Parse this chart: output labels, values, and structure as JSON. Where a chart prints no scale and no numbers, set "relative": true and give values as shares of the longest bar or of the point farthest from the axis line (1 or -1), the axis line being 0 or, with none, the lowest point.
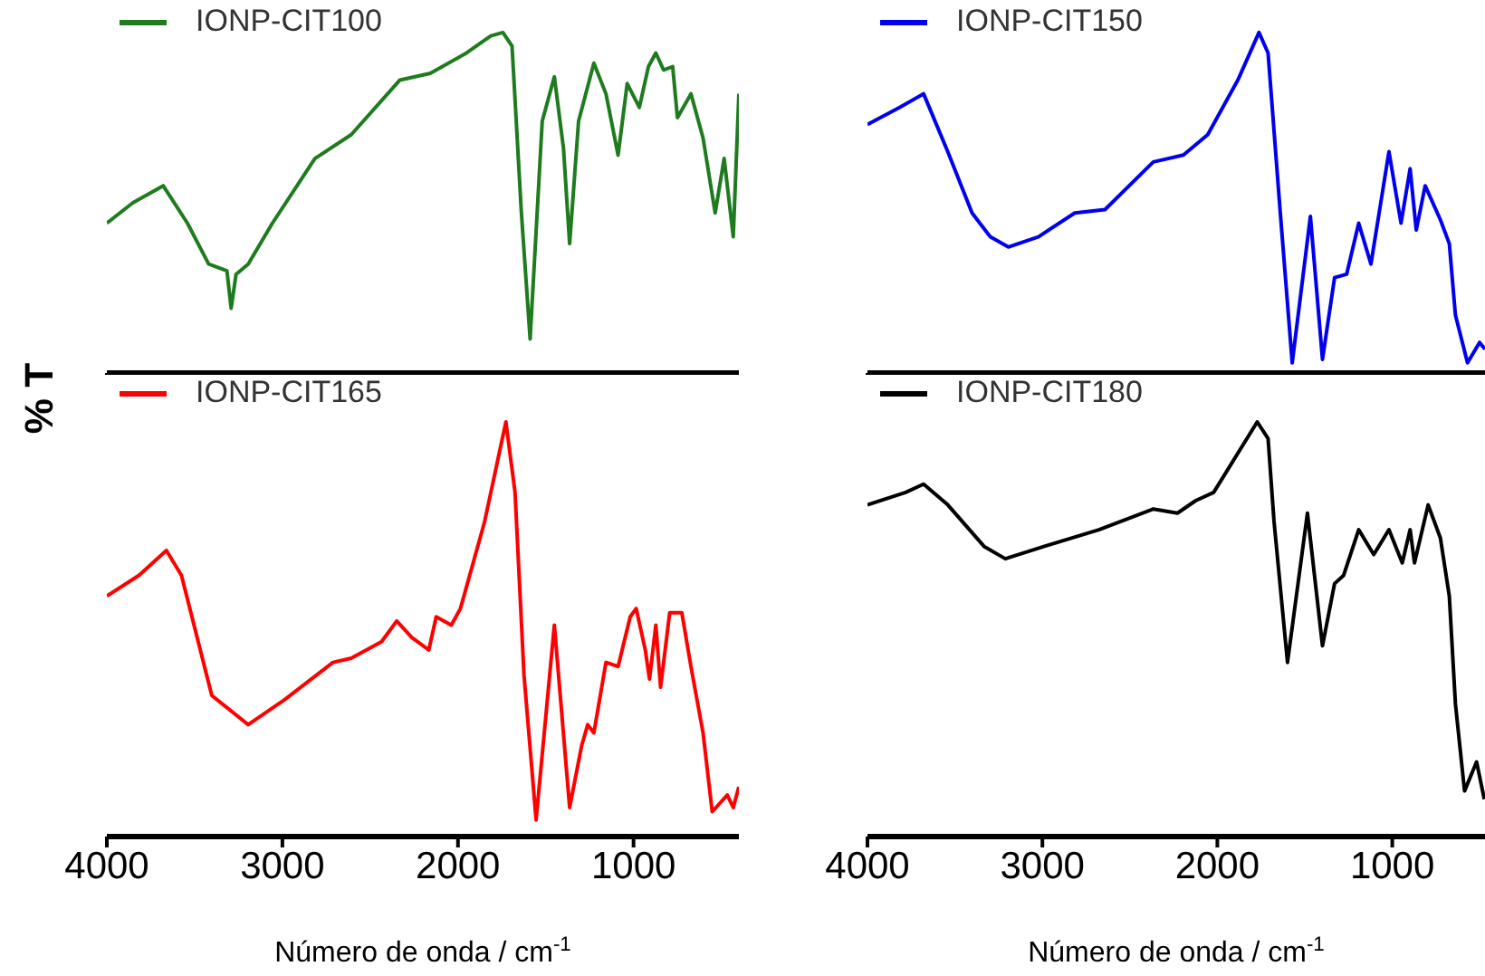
{
  "chart_data": [
    {
      "type": "line",
      "relative": true,
      "ylabel": "% T",
      "xlim": [
        4000,
        400
      ],
      "xticks": [
        4000,
        3000,
        2000,
        1000
      ],
      "tick_labels": false,
      "legend": "top left",
      "series": [
        {
          "name": "IONP-CIT100",
          "color": "#1e7b1e",
          "x": [
            4000,
            3852,
            3679,
            3541,
            3420,
            3316,
            3292,
            3264,
            3195,
            3057,
            2815,
            2608,
            2332,
            2158,
            1951,
            1813,
            1744,
            1692,
            1640,
            1589,
            1520,
            1451,
            1399,
            1364,
            1313,
            1226,
            1157,
            1088,
            1036,
            967,
            915,
            873,
            829,
            777,
            750,
            673,
            604,
            535,
            484,
            432,
            400
          ],
          "values": [
            0.44,
            0.5,
            0.55,
            0.44,
            0.32,
            0.3,
            0.19,
            0.29,
            0.32,
            0.44,
            0.63,
            0.7,
            0.86,
            0.88,
            0.94,
            0.99,
            1,
            0.96,
            0.48,
            0.1,
            0.74,
            0.87,
            0.66,
            0.38,
            0.74,
            0.91,
            0.82,
            0.64,
            0.85,
            0.78,
            0.9,
            0.94,
            0.89,
            0.9,
            0.75,
            0.82,
            0.69,
            0.47,
            0.63,
            0.4,
            0.82
          ]
        }
      ]
    },
    {
      "type": "line",
      "relative": true,
      "xlim": [
        4000,
        470
      ],
      "xticks": [
        4000,
        3000,
        2000,
        1000
      ],
      "tick_labels": false,
      "legend": "top left",
      "series": [
        {
          "name": "IONP-CIT150",
          "color": "#0000ee",
          "x": [
            4000,
            3817,
            3679,
            3541,
            3402,
            3298,
            3195,
            3023,
            2815,
            2642,
            2366,
            2194,
            2055,
            1883,
            1762,
            1710,
            1640,
            1572,
            1468,
            1399,
            1330,
            1261,
            1192,
            1122,
            1019,
            950,
            898,
            863,
            812,
            725,
            674,
            639,
            570,
            501,
            470
          ],
          "values": [
            0.73,
            0.78,
            0.82,
            0.65,
            0.47,
            0.4,
            0.37,
            0.4,
            0.47,
            0.48,
            0.62,
            0.64,
            0.7,
            0.86,
            1,
            0.94,
            0.47,
            0.03,
            0.46,
            0.04,
            0.28,
            0.29,
            0.44,
            0.32,
            0.65,
            0.44,
            0.6,
            0.42,
            0.55,
            0.45,
            0.38,
            0.17,
            0.03,
            0.09,
            0.07
          ]
        }
      ]
    },
    {
      "type": "line",
      "relative": true,
      "xlabel": "Número de onda / cm$^{-1}$",
      "xlim": [
        4000,
        400
      ],
      "xticks": [
        4000,
        3000,
        2000,
        1000
      ],
      "tick_labels": "x",
      "legend": "top left",
      "series": [
        {
          "name": "IONP-CIT165",
          "color": "#ff0000",
          "x": [
            4000,
            3817,
            3661,
            3575,
            3402,
            3195,
            2988,
            2712,
            2608,
            2435,
            2349,
            2263,
            2166,
            2124,
            2038,
            1986,
            1848,
            1727,
            1675,
            1624,
            1555,
            1451,
            1364,
            1295,
            1261,
            1226,
            1157,
            1088,
            1019,
            985,
            933,
            909,
            873,
            846,
            794,
            725,
            673,
            604,
            552,
            466,
            432,
            400
          ],
          "values": [
            0.58,
            0.63,
            0.69,
            0.63,
            0.34,
            0.27,
            0.33,
            0.42,
            0.43,
            0.47,
            0.52,
            0.48,
            0.45,
            0.53,
            0.51,
            0.55,
            0.76,
            1,
            0.83,
            0.39,
            0.04,
            0.51,
            0.07,
            0.22,
            0.27,
            0.25,
            0.42,
            0.41,
            0.53,
            0.55,
            0.45,
            0.38,
            0.51,
            0.36,
            0.54,
            0.54,
            0.41,
            0.25,
            0.06,
            0.1,
            0.07,
            0.12
          ]
        }
      ]
    },
    {
      "type": "line",
      "relative": true,
      "xlabel": "Número de onda / cm$^{-1}$",
      "xlim": [
        4000,
        470
      ],
      "xticks": [
        4000,
        3000,
        2000,
        1000
      ],
      "tick_labels": "x",
      "legend": "top left",
      "series": [
        {
          "name": "IONP-CIT180",
          "color": "#000000",
          "x": [
            4000,
            3782,
            3679,
            3541,
            3334,
            3212,
            2988,
            2677,
            2366,
            2228,
            2124,
            2021,
            1772,
            1710,
            1676,
            1599,
            1485,
            1399,
            1330,
            1278,
            1192,
            1106,
            1019,
            943,
            898,
            873,
            795,
            725,
            674,
            639,
            587,
            518,
            474
          ],
          "values": [
            0.8,
            0.83,
            0.85,
            0.8,
            0.7,
            0.67,
            0.7,
            0.74,
            0.79,
            0.78,
            0.81,
            0.83,
            1,
            0.96,
            0.76,
            0.42,
            0.78,
            0.46,
            0.61,
            0.63,
            0.74,
            0.68,
            0.74,
            0.66,
            0.74,
            0.66,
            0.8,
            0.72,
            0.58,
            0.32,
            0.11,
            0.18,
            0.09
          ]
        }
      ]
    }
  ]
}
